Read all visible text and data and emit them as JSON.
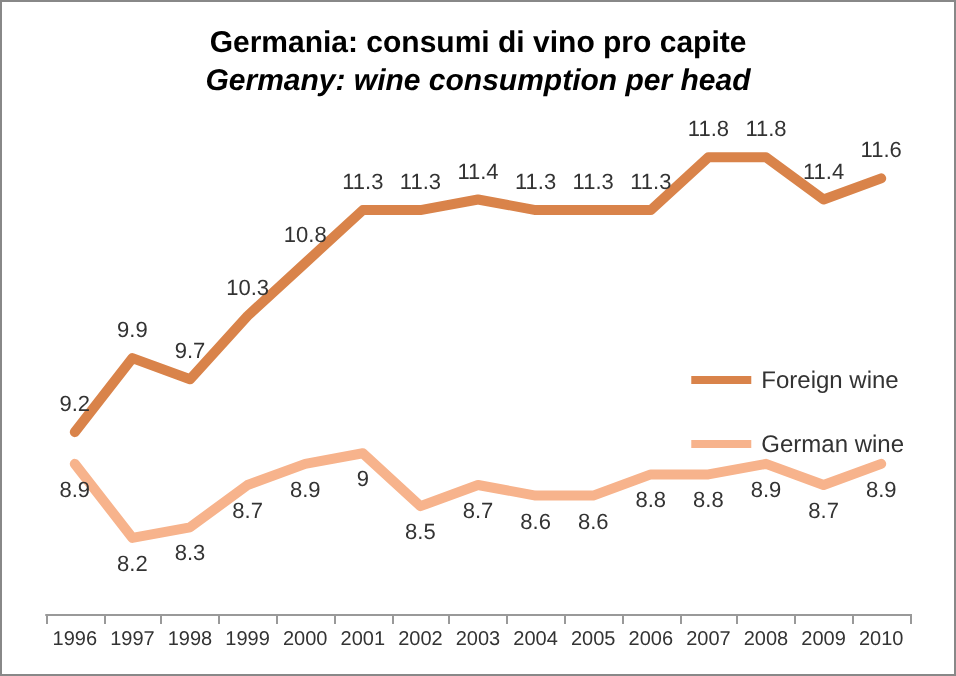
{
  "chart_data": {
    "type": "line",
    "title": "Germania: consumi di vino pro capite",
    "subtitle": "Germany: wine consumption per head",
    "categories": [
      "1996",
      "1997",
      "1998",
      "1999",
      "2000",
      "2001",
      "2002",
      "2003",
      "2004",
      "2005",
      "2006",
      "2007",
      "2008",
      "2009",
      "2010"
    ],
    "series": [
      {
        "name": "Foreign wine",
        "color": "#d9834a",
        "values": [
          9.2,
          9.9,
          9.7,
          10.3,
          10.8,
          11.3,
          11.3,
          11.4,
          11.3,
          11.3,
          11.3,
          11.8,
          11.8,
          11.4,
          11.6
        ]
      },
      {
        "name": "German wine",
        "color": "#f7b38c",
        "values": [
          8.9,
          8.2,
          8.3,
          8.7,
          8.9,
          9,
          8.5,
          8.7,
          8.6,
          8.6,
          8.8,
          8.8,
          8.9,
          8.7,
          8.9
        ]
      }
    ],
    "data_labels": true,
    "legend": "right",
    "grid": false,
    "marker": "none",
    "line_style": "solid"
  }
}
